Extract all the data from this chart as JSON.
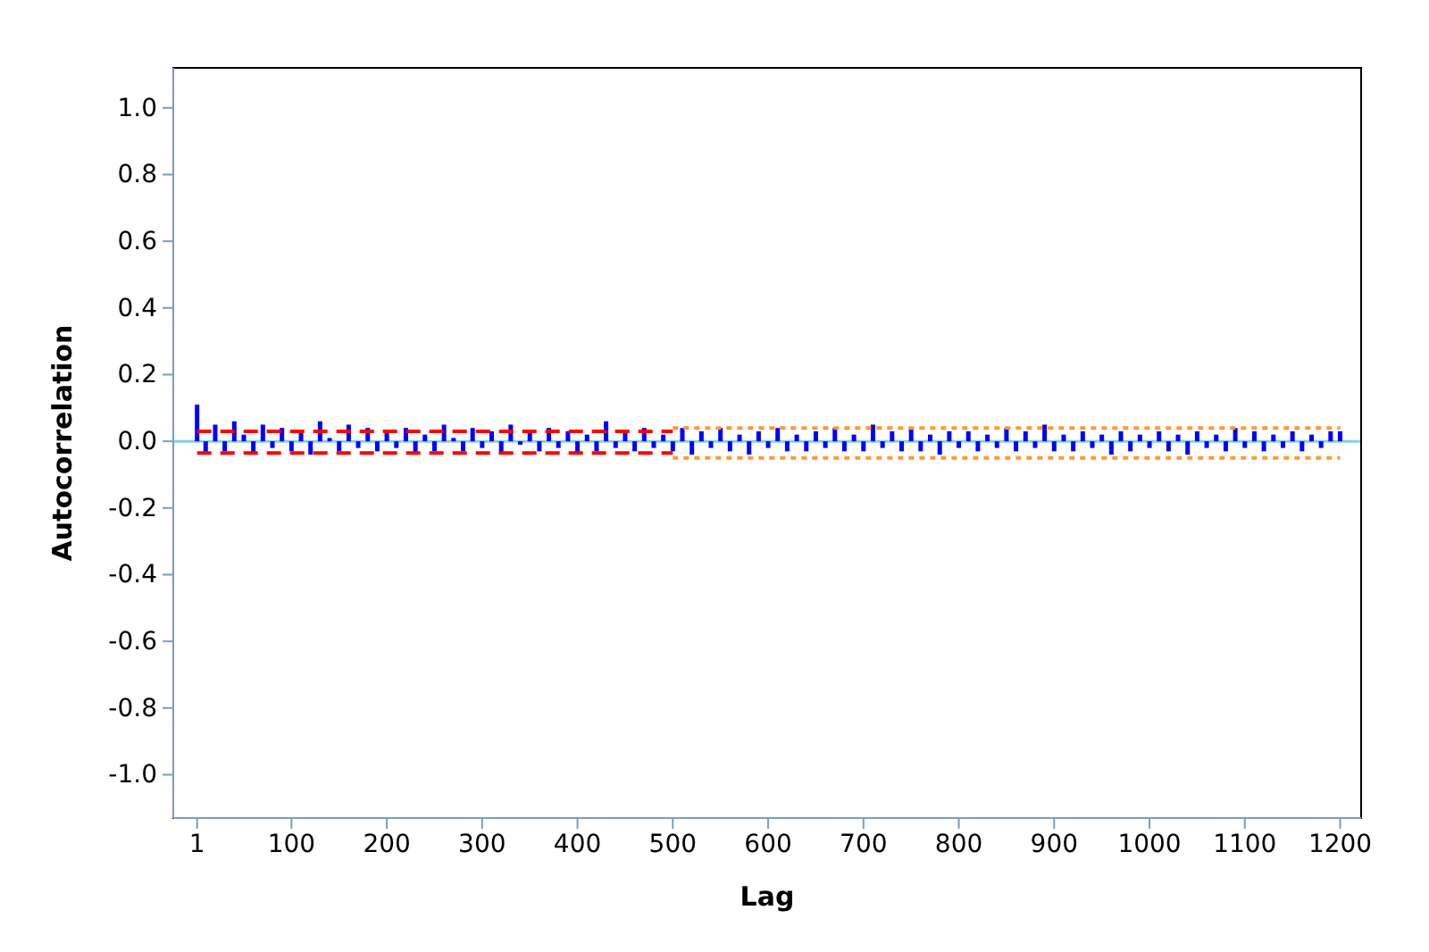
{
  "chart_data": {
    "type": "bar",
    "xlabel": "Lag",
    "ylabel": "Autocorrelation",
    "x": [
      1,
      10,
      20,
      30,
      40,
      50,
      60,
      70,
      80,
      90,
      100,
      110,
      120,
      130,
      140,
      150,
      160,
      170,
      180,
      190,
      200,
      210,
      220,
      230,
      240,
      250,
      260,
      270,
      280,
      290,
      300,
      310,
      320,
      330,
      340,
      350,
      360,
      370,
      380,
      390,
      400,
      410,
      420,
      430,
      440,
      450,
      460,
      470,
      480,
      490,
      500,
      510,
      520,
      530,
      540,
      550,
      560,
      570,
      580,
      590,
      600,
      610,
      620,
      630,
      640,
      650,
      660,
      670,
      680,
      690,
      700,
      710,
      720,
      730,
      740,
      750,
      760,
      770,
      780,
      790,
      800,
      810,
      820,
      830,
      840,
      850,
      860,
      870,
      880,
      890,
      900,
      910,
      920,
      930,
      940,
      950,
      960,
      970,
      980,
      990,
      1000,
      1010,
      1020,
      1030,
      1040,
      1050,
      1060,
      1070,
      1080,
      1090,
      1100,
      1110,
      1120,
      1130,
      1140,
      1150,
      1160,
      1170,
      1180,
      1190,
      1200
    ],
    "series": [
      {
        "color": "#0000ff",
        "values": [
          0.11,
          -0.04,
          0.05,
          -0.03,
          0.06,
          0.02,
          -0.04,
          0.05,
          -0.02,
          0.04,
          -0.03,
          0.03,
          -0.04,
          0.06,
          0.01,
          -0.03,
          0.05,
          -0.02,
          0.04,
          -0.03,
          0.03,
          -0.02,
          0.04,
          -0.04,
          0.02,
          -0.03,
          0.05,
          0.01,
          -0.03,
          0.04,
          -0.02,
          0.03,
          -0.04,
          0.05,
          -0.01,
          0.03,
          -0.03,
          0.04,
          -0.02,
          0.03,
          -0.04,
          0.02,
          -0.03,
          0.06,
          -0.02,
          0.03,
          -0.03,
          0.04,
          -0.02,
          0.02,
          -0.03,
          0.04,
          -0.04,
          0.03,
          -0.02,
          0.04,
          -0.03,
          0.02,
          -0.04,
          0.03,
          -0.02,
          0.04,
          -0.03,
          0.02,
          -0.03,
          0.03,
          -0.02,
          0.04,
          -0.03,
          0.02,
          -0.03,
          0.05,
          -0.02,
          0.03,
          -0.03,
          0.04,
          -0.03,
          0.02,
          -0.04,
          0.03,
          -0.02,
          0.03,
          -0.03,
          0.02,
          -0.02,
          0.04,
          -0.03,
          0.03,
          -0.02,
          0.05,
          -0.03,
          0.02,
          -0.03,
          0.03,
          -0.02,
          0.02,
          -0.04,
          0.03,
          -0.03,
          0.02,
          -0.02,
          0.03,
          -0.03,
          0.02,
          -0.04,
          0.03,
          -0.02,
          0.02,
          -0.03,
          0.04,
          -0.02,
          0.03,
          -0.03,
          0.02,
          -0.02,
          0.03,
          -0.03,
          0.02,
          -0.02,
          0.03,
          0.03
        ]
      },
      {
        "type": "line",
        "color": "#ff0000",
        "line_style": "dashed",
        "x": [
          1,
          500
        ],
        "values": [
          0.03,
          0.03
        ]
      },
      {
        "type": "line",
        "color": "#ff0000",
        "line_style": "dashed",
        "x": [
          1,
          500
        ],
        "values": [
          -0.035,
          -0.035
        ]
      },
      {
        "type": "line",
        "color": "#ff9933",
        "line_style": "dotted",
        "x": [
          500,
          1200
        ],
        "values": [
          0.04,
          0.04
        ]
      },
      {
        "type": "line",
        "color": "#ff9933",
        "line_style": "dotted",
        "x": [
          500,
          1200
        ],
        "values": [
          -0.05,
          -0.05
        ]
      }
    ],
    "ref_lines": [
      {
        "axis": "y",
        "value": 0,
        "color": "#87ceeb"
      }
    ],
    "xlim": [
      -24,
      1222
    ],
    "xticks": [
      1,
      100,
      200,
      300,
      400,
      500,
      600,
      700,
      800,
      900,
      1000,
      1100,
      1200
    ],
    "ylim": [
      -1.13,
      1.12
    ],
    "yticks": [
      {
        "value": 1,
        "label": "1.0"
      },
      {
        "value": 0.8,
        "label": "0.8"
      },
      {
        "value": 0.6,
        "label": "0.6"
      },
      {
        "value": 0.4,
        "label": "0.4"
      },
      {
        "value": 0.2,
        "label": "0.2"
      },
      {
        "value": 0,
        "label": "0.0"
      },
      {
        "value": -0.2,
        "label": "-0.2"
      },
      {
        "value": -0.4,
        "label": "-0.4"
      },
      {
        "value": -0.6,
        "label": "-0.6"
      },
      {
        "value": -0.8,
        "label": "-0.8"
      },
      {
        "value": -1,
        "label": "-1.0"
      }
    ]
  }
}
